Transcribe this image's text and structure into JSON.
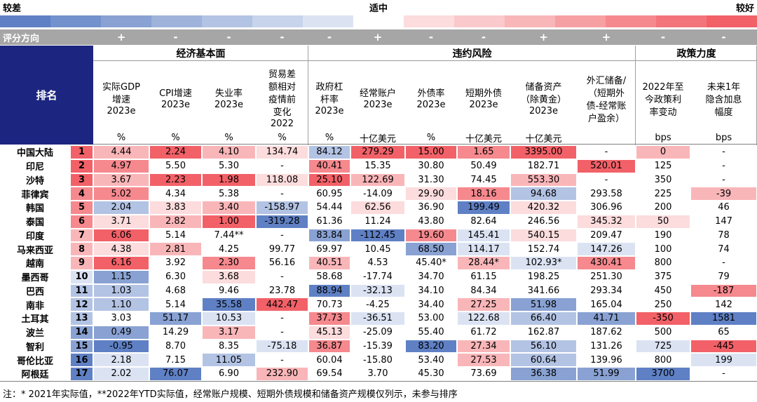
{
  "legend": {
    "low": "较差",
    "mid": "适中",
    "high": "较好",
    "colors": [
      "#5f80c4",
      "#7391cc",
      "#89a2d3",
      "#9eb2da",
      "#b3c3e4",
      "#c8d3ec",
      "#dbe3f3",
      "#ffffff",
      "#fcdcdd",
      "#fac9cb",
      "#f9b6b9",
      "#f7a0a4",
      "#f5898e",
      "#f3757b",
      "#f26168"
    ]
  },
  "direction_label": "评分方向",
  "rank_header": "排名",
  "groups": [
    {
      "label": "经济基本面",
      "columns": [
        {
          "lines": [
            "实际GDP",
            "增速",
            "2023e"
          ],
          "unit": "%",
          "direction": "+"
        },
        {
          "lines": [
            "CPI增速",
            "2023e"
          ],
          "unit": "%",
          "direction": "-"
        },
        {
          "lines": [
            "失业率",
            "2023e"
          ],
          "unit": "%",
          "direction": "-"
        },
        {
          "lines": [
            "贸易差",
            "额相对",
            "疫情前",
            "变化",
            "2022"
          ],
          "unit": "%",
          "direction": "-"
        }
      ]
    },
    {
      "label": "违约风险",
      "columns": [
        {
          "lines": [
            "政府杠",
            "杆率",
            "2023e"
          ],
          "unit": "%",
          "direction": "-"
        },
        {
          "lines": [
            "经常账户",
            "2023e"
          ],
          "unit": "十亿美元",
          "direction": "+"
        },
        {
          "lines": [
            "外债率",
            "2023e"
          ],
          "unit": "%",
          "direction": "-"
        },
        {
          "lines": [
            "短期外债",
            "2023e"
          ],
          "unit": "十亿美元",
          "direction": "-"
        },
        {
          "lines": [
            "储备资产",
            "（除黄金）",
            "2023e"
          ],
          "unit": "十亿美元",
          "direction": "+"
        },
        {
          "lines": [
            "外汇储备/",
            "（短期外",
            "债-经常账",
            "户盈余）"
          ],
          "direction": "+"
        }
      ]
    },
    {
      "label": "政策力度",
      "columns": [
        {
          "lines": [
            "2022年至",
            "今政策利",
            "率变动"
          ],
          "unit": "bps",
          "direction": "-"
        },
        {
          "lines": [
            "未来1年",
            "隐含加息",
            "幅度"
          ],
          "unit": "bps",
          "direction": "-"
        }
      ]
    }
  ],
  "rows": [
    {
      "name": "中国大陆",
      "rank": 1,
      "rank_color": "#f26168",
      "cells": [
        "4.44",
        "2.24",
        "4.10",
        "134.74",
        "84.12",
        "279.29",
        "15.00",
        "1.65",
        "3395.00",
        "-",
        "0",
        "-"
      ],
      "colors": [
        "#f9b6b9",
        "#f26168",
        "#f9b6b9",
        "#fcdcdd",
        "#b3c3e4",
        "#f26168",
        "#f26168",
        "#f5898e",
        "#f26168",
        "#ffffff",
        "#f9b6b9",
        "#ffffff"
      ]
    },
    {
      "name": "印尼",
      "rank": 2,
      "rank_color": "#f26168",
      "cells": [
        "4.97",
        "5.50",
        "5.30",
        "-",
        "40.41",
        "15.35",
        "30.80",
        "50.49",
        "182.71",
        "520.01",
        "125",
        "-"
      ],
      "colors": [
        "#f5898e",
        "#ffffff",
        "#ffffff",
        "#ffffff",
        "#f5898e",
        "#ffffff",
        "#ffffff",
        "#ffffff",
        "#ffffff",
        "#f26168",
        "#ffffff",
        "#ffffff"
      ]
    },
    {
      "name": "沙特",
      "rank": 3,
      "rank_color": "#f26168",
      "cells": [
        "3.67",
        "2.23",
        "1.98",
        "118.08",
        "25.10",
        "122.69",
        "31.30",
        "74.45",
        "553.30",
        "-",
        "350",
        "-"
      ],
      "colors": [
        "#f9b6b9",
        "#f26168",
        "#f26168",
        "#fcdcdd",
        "#f26168",
        "#f9b6b9",
        "#ffffff",
        "#ffffff",
        "#f9b6b9",
        "#ffffff",
        "#ffffff",
        "#ffffff"
      ]
    },
    {
      "name": "菲律宾",
      "rank": 4,
      "rank_color": "#f5898e",
      "cells": [
        "5.02",
        "4.34",
        "5.38",
        "-",
        "60.95",
        "-14.09",
        "29.90",
        "18.16",
        "94.68",
        "293.58",
        "225",
        "-39"
      ],
      "colors": [
        "#f5898e",
        "#ffffff",
        "#ffffff",
        "#ffffff",
        "#ffffff",
        "#ffffff",
        "#fcdcdd",
        "#f5898e",
        "#b3c3e4",
        "#ffffff",
        "#ffffff",
        "#f9b6b9"
      ]
    },
    {
      "name": "韩国",
      "rank": 5,
      "rank_color": "#f5898e",
      "cells": [
        "2.04",
        "3.83",
        "3.40",
        "-158.97",
        "54.44",
        "62.56",
        "36.90",
        "199.49",
        "420.32",
        "306.96",
        "200",
        "46"
      ],
      "colors": [
        "#b3c3e4",
        "#fcdcdd",
        "#f9b6b9",
        "#b3c3e4",
        "#ffffff",
        "#fcdcdd",
        "#ffffff",
        "#5f80c4",
        "#fcdcdd",
        "#ffffff",
        "#ffffff",
        "#ffffff"
      ]
    },
    {
      "name": "泰国",
      "rank": 6,
      "rank_color": "#f5898e",
      "cells": [
        "3.71",
        "2.82",
        "1.00",
        "-319.28",
        "61.36",
        "11.24",
        "43.80",
        "82.64",
        "246.56",
        "345.32",
        "50",
        "147"
      ],
      "colors": [
        "#fcdcdd",
        "#f9b6b9",
        "#f26168",
        "#5f80c4",
        "#ffffff",
        "#ffffff",
        "#ffffff",
        "#ffffff",
        "#ffffff",
        "#fcdcdd",
        "#fcdcdd",
        "#ffffff"
      ]
    },
    {
      "name": "印度",
      "rank": 7,
      "rank_color": "#f9b6b9",
      "cells": [
        "6.06",
        "5.14",
        "7.44**",
        "-",
        "83.84",
        "-112.45",
        "19.60",
        "145.41",
        "540.15",
        "209.47",
        "190",
        "78"
      ],
      "colors": [
        "#f26168",
        "#ffffff",
        "#ffffff",
        "#ffffff",
        "#89a2d3",
        "#5f80c4",
        "#f5898e",
        "#dbe3f3",
        "#fcdcdd",
        "#ffffff",
        "#ffffff",
        "#ffffff"
      ]
    },
    {
      "name": "马来西亚",
      "rank": 8,
      "rank_color": "#f9b6b9",
      "cells": [
        "4.38",
        "2.81",
        "4.25",
        "99.77",
        "69.97",
        "10.45",
        "68.50",
        "114.17",
        "152.74",
        "147.26",
        "100",
        "74"
      ],
      "colors": [
        "#fcdcdd",
        "#f9b6b9",
        "#ffffff",
        "#ffffff",
        "#ffffff",
        "#ffffff",
        "#89a2d3",
        "#dbe3f3",
        "#ffffff",
        "#dbe3f3",
        "#ffffff",
        "#ffffff"
      ]
    },
    {
      "name": "越南",
      "rank": 9,
      "rank_color": "#f9b6b9",
      "cells": [
        "6.16",
        "3.92",
        "2.30",
        "56.16",
        "40.51",
        "4.53",
        "45.40*",
        "28.44*",
        "102.93*",
        "430.41",
        "800",
        "-"
      ],
      "colors": [
        "#f26168",
        "#ffffff",
        "#f5898e",
        "#ffffff",
        "#f9b6b9",
        "#ffffff",
        "#ffffff",
        "#f9b6b9",
        "#dbe3f3",
        "#f5898e",
        "#ffffff",
        "#ffffff"
      ]
    },
    {
      "name": "墨西哥",
      "rank": 10,
      "rank_color": "#dbe3f3",
      "cells": [
        "1.15",
        "6.30",
        "3.68",
        "-",
        "58.68",
        "-17.74",
        "34.70",
        "61.15",
        "198.25",
        "251.30",
        "375",
        "79"
      ],
      "colors": [
        "#89a2d3",
        "#ffffff",
        "#fcdcdd",
        "#ffffff",
        "#ffffff",
        "#ffffff",
        "#ffffff",
        "#ffffff",
        "#ffffff",
        "#ffffff",
        "#ffffff",
        "#ffffff"
      ]
    },
    {
      "name": "巴西",
      "rank": 11,
      "rank_color": "#b3c3e4",
      "cells": [
        "1.03",
        "4.68",
        "9.46",
        "23.78",
        "88.94",
        "-32.13",
        "34.10",
        "84.34",
        "341.66",
        "293.34",
        "450",
        "-187"
      ],
      "colors": [
        "#b3c3e4",
        "#ffffff",
        "#ffffff",
        "#ffffff",
        "#5f80c4",
        "#dbe3f3",
        "#ffffff",
        "#ffffff",
        "#ffffff",
        "#ffffff",
        "#ffffff",
        "#f5898e"
      ]
    },
    {
      "name": "南非",
      "rank": 12,
      "rank_color": "#b3c3e4",
      "cells": [
        "1.10",
        "5.14",
        "35.58",
        "442.47",
        "70.73",
        "-4.25",
        "34.40",
        "27.25",
        "51.98",
        "165.04",
        "250",
        "142"
      ],
      "colors": [
        "#b3c3e4",
        "#ffffff",
        "#5f80c4",
        "#f26168",
        "#ffffff",
        "#ffffff",
        "#ffffff",
        "#f9b6b9",
        "#89a2d3",
        "#ffffff",
        "#ffffff",
        "#ffffff"
      ]
    },
    {
      "name": "土耳其",
      "rank": 13,
      "rank_color": "#b3c3e4",
      "cells": [
        "3.03",
        "51.17",
        "10.53",
        "-",
        "37.73",
        "-36.51",
        "53.00",
        "122.68",
        "66.40",
        "41.71",
        "-350",
        "1581"
      ],
      "colors": [
        "#ffffff",
        "#89a2d3",
        "#dbe3f3",
        "#ffffff",
        "#f5898e",
        "#dbe3f3",
        "#ffffff",
        "#dbe3f3",
        "#b3c3e4",
        "#89a2d3",
        "#f26168",
        "#5f80c4"
      ]
    },
    {
      "name": "波兰",
      "rank": 14,
      "rank_color": "#89a2d3",
      "cells": [
        "0.49",
        "14.29",
        "3.17",
        "-",
        "45.13",
        "-25.09",
        "55.40",
        "61.72",
        "162.87",
        "187.62",
        "500",
        "65"
      ],
      "colors": [
        "#89a2d3",
        "#ffffff",
        "#f9b6b9",
        "#ffffff",
        "#fcdcdd",
        "#ffffff",
        "#ffffff",
        "#ffffff",
        "#ffffff",
        "#ffffff",
        "#ffffff",
        "#ffffff"
      ]
    },
    {
      "name": "智利",
      "rank": 15,
      "rank_color": "#89a2d3",
      "cells": [
        "-0.95",
        "8.70",
        "8.35",
        "-75.18",
        "36.87",
        "-15.39",
        "83.20",
        "27.34",
        "56.10",
        "131.26",
        "725",
        "-445"
      ],
      "colors": [
        "#5f80c4",
        "#ffffff",
        "#ffffff",
        "#dbe3f3",
        "#f5898e",
        "#ffffff",
        "#5f80c4",
        "#f9b6b9",
        "#b3c3e4",
        "#ffffff",
        "#dbe3f3",
        "#f26168"
      ]
    },
    {
      "name": "哥伦比亚",
      "rank": 16,
      "rank_color": "#5f80c4",
      "cells": [
        "2.18",
        "7.15",
        "11.05",
        "-",
        "60.04",
        "-15.80",
        "53.40",
        "27.53",
        "60.64",
        "139.96",
        "800",
        "199"
      ],
      "colors": [
        "#dbe3f3",
        "#ffffff",
        "#b3c3e4",
        "#ffffff",
        "#ffffff",
        "#ffffff",
        "#ffffff",
        "#f9b6b9",
        "#b3c3e4",
        "#ffffff",
        "#ffffff",
        "#dbe3f3"
      ]
    },
    {
      "name": "阿根廷",
      "rank": 17,
      "rank_color": "#5f80c4",
      "cells": [
        "2.02",
        "76.07",
        "6.90",
        "232.90",
        "69.54",
        "3.70",
        "45.30",
        "73.69",
        "36.38",
        "51.99",
        "3700",
        "-"
      ],
      "colors": [
        "#dbe3f3",
        "#5f80c4",
        "#ffffff",
        "#f9b6b9",
        "#ffffff",
        "#ffffff",
        "#ffffff",
        "#ffffff",
        "#89a2d3",
        "#89a2d3",
        "#5f80c4",
        "#ffffff"
      ]
    }
  ],
  "footnote": "注：* 2021年实际值，**2022年YTD实际值，经常账户规模、短期外债规模和储备资产规模仅列示，未参与排序"
}
